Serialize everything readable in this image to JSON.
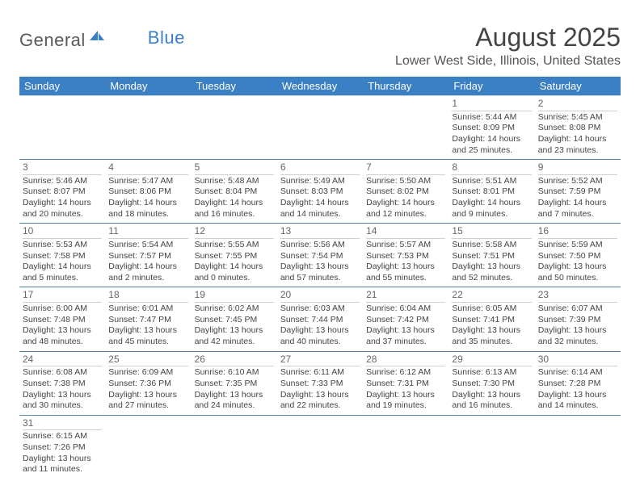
{
  "logo": {
    "word1": "General",
    "word2": "Blue"
  },
  "title": "August 2025",
  "location": "Lower West Side, Illinois, United States",
  "days": [
    "Sunday",
    "Monday",
    "Tuesday",
    "Wednesday",
    "Thursday",
    "Friday",
    "Saturday"
  ],
  "colors": {
    "header_bg": "#3b7fc4",
    "header_fg": "#ffffff",
    "text": "#444444",
    "logo_gray": "#5a5a5a",
    "logo_blue": "#3b7fc4",
    "row_border": "#5b87b5",
    "light_border": "#d0d0d0"
  },
  "fonts": {
    "day_header_size": 13,
    "title_size": 32,
    "location_size": 16,
    "cell_size": 10.5,
    "daynum_size": 12
  },
  "weeks": [
    [
      null,
      null,
      null,
      null,
      null,
      {
        "n": "1",
        "lines": [
          "Sunrise: 5:44 AM",
          "Sunset: 8:09 PM",
          "Daylight: 14 hours",
          "and 25 minutes."
        ]
      },
      {
        "n": "2",
        "lines": [
          "Sunrise: 5:45 AM",
          "Sunset: 8:08 PM",
          "Daylight: 14 hours",
          "and 23 minutes."
        ]
      }
    ],
    [
      {
        "n": "3",
        "lines": [
          "Sunrise: 5:46 AM",
          "Sunset: 8:07 PM",
          "Daylight: 14 hours",
          "and 20 minutes."
        ]
      },
      {
        "n": "4",
        "lines": [
          "Sunrise: 5:47 AM",
          "Sunset: 8:06 PM",
          "Daylight: 14 hours",
          "and 18 minutes."
        ]
      },
      {
        "n": "5",
        "lines": [
          "Sunrise: 5:48 AM",
          "Sunset: 8:04 PM",
          "Daylight: 14 hours",
          "and 16 minutes."
        ]
      },
      {
        "n": "6",
        "lines": [
          "Sunrise: 5:49 AM",
          "Sunset: 8:03 PM",
          "Daylight: 14 hours",
          "and 14 minutes."
        ]
      },
      {
        "n": "7",
        "lines": [
          "Sunrise: 5:50 AM",
          "Sunset: 8:02 PM",
          "Daylight: 14 hours",
          "and 12 minutes."
        ]
      },
      {
        "n": "8",
        "lines": [
          "Sunrise: 5:51 AM",
          "Sunset: 8:01 PM",
          "Daylight: 14 hours",
          "and 9 minutes."
        ]
      },
      {
        "n": "9",
        "lines": [
          "Sunrise: 5:52 AM",
          "Sunset: 7:59 PM",
          "Daylight: 14 hours",
          "and 7 minutes."
        ]
      }
    ],
    [
      {
        "n": "10",
        "lines": [
          "Sunrise: 5:53 AM",
          "Sunset: 7:58 PM",
          "Daylight: 14 hours",
          "and 5 minutes."
        ]
      },
      {
        "n": "11",
        "lines": [
          "Sunrise: 5:54 AM",
          "Sunset: 7:57 PM",
          "Daylight: 14 hours",
          "and 2 minutes."
        ]
      },
      {
        "n": "12",
        "lines": [
          "Sunrise: 5:55 AM",
          "Sunset: 7:55 PM",
          "Daylight: 14 hours",
          "and 0 minutes."
        ]
      },
      {
        "n": "13",
        "lines": [
          "Sunrise: 5:56 AM",
          "Sunset: 7:54 PM",
          "Daylight: 13 hours",
          "and 57 minutes."
        ]
      },
      {
        "n": "14",
        "lines": [
          "Sunrise: 5:57 AM",
          "Sunset: 7:53 PM",
          "Daylight: 13 hours",
          "and 55 minutes."
        ]
      },
      {
        "n": "15",
        "lines": [
          "Sunrise: 5:58 AM",
          "Sunset: 7:51 PM",
          "Daylight: 13 hours",
          "and 52 minutes."
        ]
      },
      {
        "n": "16",
        "lines": [
          "Sunrise: 5:59 AM",
          "Sunset: 7:50 PM",
          "Daylight: 13 hours",
          "and 50 minutes."
        ]
      }
    ],
    [
      {
        "n": "17",
        "lines": [
          "Sunrise: 6:00 AM",
          "Sunset: 7:48 PM",
          "Daylight: 13 hours",
          "and 48 minutes."
        ]
      },
      {
        "n": "18",
        "lines": [
          "Sunrise: 6:01 AM",
          "Sunset: 7:47 PM",
          "Daylight: 13 hours",
          "and 45 minutes."
        ]
      },
      {
        "n": "19",
        "lines": [
          "Sunrise: 6:02 AM",
          "Sunset: 7:45 PM",
          "Daylight: 13 hours",
          "and 42 minutes."
        ]
      },
      {
        "n": "20",
        "lines": [
          "Sunrise: 6:03 AM",
          "Sunset: 7:44 PM",
          "Daylight: 13 hours",
          "and 40 minutes."
        ]
      },
      {
        "n": "21",
        "lines": [
          "Sunrise: 6:04 AM",
          "Sunset: 7:42 PM",
          "Daylight: 13 hours",
          "and 37 minutes."
        ]
      },
      {
        "n": "22",
        "lines": [
          "Sunrise: 6:05 AM",
          "Sunset: 7:41 PM",
          "Daylight: 13 hours",
          "and 35 minutes."
        ]
      },
      {
        "n": "23",
        "lines": [
          "Sunrise: 6:07 AM",
          "Sunset: 7:39 PM",
          "Daylight: 13 hours",
          "and 32 minutes."
        ]
      }
    ],
    [
      {
        "n": "24",
        "lines": [
          "Sunrise: 6:08 AM",
          "Sunset: 7:38 PM",
          "Daylight: 13 hours",
          "and 30 minutes."
        ]
      },
      {
        "n": "25",
        "lines": [
          "Sunrise: 6:09 AM",
          "Sunset: 7:36 PM",
          "Daylight: 13 hours",
          "and 27 minutes."
        ]
      },
      {
        "n": "26",
        "lines": [
          "Sunrise: 6:10 AM",
          "Sunset: 7:35 PM",
          "Daylight: 13 hours",
          "and 24 minutes."
        ]
      },
      {
        "n": "27",
        "lines": [
          "Sunrise: 6:11 AM",
          "Sunset: 7:33 PM",
          "Daylight: 13 hours",
          "and 22 minutes."
        ]
      },
      {
        "n": "28",
        "lines": [
          "Sunrise: 6:12 AM",
          "Sunset: 7:31 PM",
          "Daylight: 13 hours",
          "and 19 minutes."
        ]
      },
      {
        "n": "29",
        "lines": [
          "Sunrise: 6:13 AM",
          "Sunset: 7:30 PM",
          "Daylight: 13 hours",
          "and 16 minutes."
        ]
      },
      {
        "n": "30",
        "lines": [
          "Sunrise: 6:14 AM",
          "Sunset: 7:28 PM",
          "Daylight: 13 hours",
          "and 14 minutes."
        ]
      }
    ],
    [
      {
        "n": "31",
        "lines": [
          "Sunrise: 6:15 AM",
          "Sunset: 7:26 PM",
          "Daylight: 13 hours",
          "and 11 minutes."
        ]
      },
      null,
      null,
      null,
      null,
      null,
      null
    ]
  ]
}
